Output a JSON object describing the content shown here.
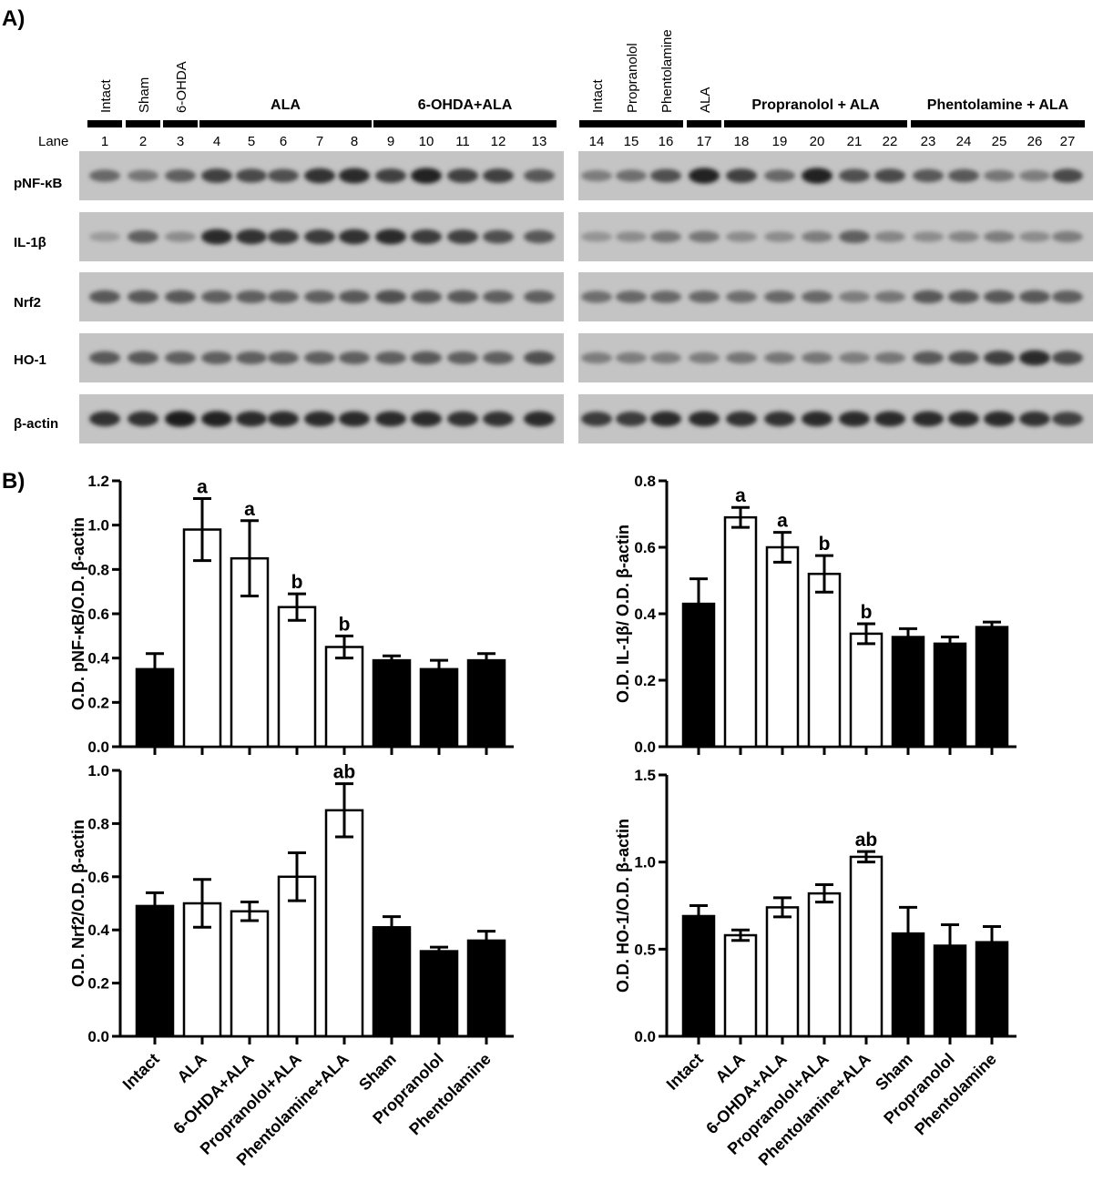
{
  "panel_a": {
    "label": "A)",
    "lane_label": "Lane",
    "left_groups": [
      {
        "name": "Intact",
        "lanes": [
          1
        ]
      },
      {
        "name": "Sham",
        "lanes": [
          2
        ]
      },
      {
        "name": "6-OHDA",
        "lanes": [
          3
        ]
      },
      {
        "name": "ALA",
        "lanes": [
          4,
          5,
          6,
          7,
          8
        ]
      },
      {
        "name": "6-OHDA+ALA",
        "lanes": [
          9,
          10,
          11,
          12,
          13
        ]
      }
    ],
    "right_groups": [
      {
        "name": "Intact",
        "lanes": [
          14
        ]
      },
      {
        "name": "Propranolol",
        "lanes": [
          15
        ]
      },
      {
        "name": "Phentolamine",
        "lanes": [
          16
        ]
      },
      {
        "name": "ALA",
        "lanes": [
          17
        ]
      },
      {
        "name": "Propranolol + ALA",
        "lanes": [
          18,
          19,
          20,
          21,
          22
        ]
      },
      {
        "name": "Phentolamine + ALA",
        "lanes": [
          23,
          24,
          25,
          26,
          27
        ]
      }
    ],
    "blots": [
      {
        "protein": "pNF-κB",
        "left_intensity": [
          0.45,
          0.35,
          0.5,
          0.7,
          0.65,
          0.6,
          0.8,
          0.85,
          0.7,
          0.9,
          0.7,
          0.7,
          0.55
        ],
        "right_intensity": [
          0.3,
          0.4,
          0.6,
          0.9,
          0.7,
          0.45,
          0.9,
          0.6,
          0.65,
          0.55,
          0.55,
          0.35,
          0.3,
          0.65
        ]
      },
      {
        "protein": "IL-1β",
        "left_intensity": [
          0.1,
          0.5,
          0.2,
          0.85,
          0.8,
          0.75,
          0.75,
          0.8,
          0.85,
          0.75,
          0.7,
          0.6,
          0.55
        ],
        "right_intensity": [
          0.15,
          0.2,
          0.35,
          0.35,
          0.2,
          0.2,
          0.3,
          0.5,
          0.25,
          0.2,
          0.25,
          0.3,
          0.2,
          0.3
        ]
      },
      {
        "protein": "Nrf2",
        "left_intensity": [
          0.55,
          0.55,
          0.55,
          0.5,
          0.5,
          0.5,
          0.5,
          0.55,
          0.6,
          0.55,
          0.55,
          0.5,
          0.5
        ],
        "right_intensity": [
          0.4,
          0.45,
          0.45,
          0.45,
          0.4,
          0.45,
          0.45,
          0.3,
          0.35,
          0.55,
          0.55,
          0.55,
          0.55,
          0.5
        ]
      },
      {
        "protein": "HO-1",
        "left_intensity": [
          0.55,
          0.55,
          0.5,
          0.5,
          0.5,
          0.5,
          0.5,
          0.5,
          0.5,
          0.55,
          0.5,
          0.5,
          0.6
        ],
        "right_intensity": [
          0.3,
          0.3,
          0.3,
          0.3,
          0.35,
          0.35,
          0.35,
          0.3,
          0.35,
          0.55,
          0.6,
          0.7,
          0.85,
          0.65
        ]
      },
      {
        "protein": "β-actin",
        "left_intensity": [
          0.8,
          0.8,
          0.95,
          0.9,
          0.85,
          0.85,
          0.85,
          0.85,
          0.85,
          0.85,
          0.8,
          0.8,
          0.85
        ],
        "right_intensity": [
          0.75,
          0.75,
          0.85,
          0.85,
          0.8,
          0.8,
          0.85,
          0.85,
          0.85,
          0.85,
          0.85,
          0.85,
          0.8,
          0.7
        ]
      }
    ]
  },
  "panel_b_label": "B)",
  "chart_data": [
    {
      "type": "bar",
      "ylabel": "O.D. pNF-κB/O.D. β-actin",
      "ylim": [
        0,
        1.2
      ],
      "yticks": [
        "0.0",
        "0.2",
        "0.4",
        "0.6",
        "0.8",
        "1.0",
        "1.2"
      ],
      "categories": [
        "Intact",
        "ALA",
        "6-OHDA+ALA",
        "Propranolol+ALA",
        "Phentolamine+ALA",
        "Sham",
        "Propranolol",
        "Phentolamine"
      ],
      "values": [
        0.35,
        0.98,
        0.85,
        0.63,
        0.45,
        0.39,
        0.35,
        0.39
      ],
      "errors": [
        0.07,
        0.14,
        0.17,
        0.06,
        0.05,
        0.02,
        0.04,
        0.03
      ],
      "fills": [
        "black",
        "white",
        "white",
        "white",
        "white",
        "black",
        "black",
        "black"
      ],
      "annotations": [
        "",
        "a",
        "a",
        "b",
        "b",
        "",
        "",
        ""
      ]
    },
    {
      "type": "bar",
      "ylabel": "O.D. IL-1β/ O.D. β-actin",
      "ylim": [
        0,
        0.8
      ],
      "yticks": [
        "0.0",
        "0.2",
        "0.4",
        "0.6",
        "0.8"
      ],
      "categories": [
        "Intact",
        "ALA",
        "6-OHDA+ALA",
        "Propranolol+ALA",
        "Phentolamine+ALA",
        "Sham",
        "Propranolol",
        "Phentolamine"
      ],
      "values": [
        0.43,
        0.69,
        0.6,
        0.52,
        0.34,
        0.33,
        0.31,
        0.36
      ],
      "errors": [
        0.075,
        0.03,
        0.045,
        0.055,
        0.03,
        0.025,
        0.02,
        0.015
      ],
      "fills": [
        "black",
        "white",
        "white",
        "white",
        "white",
        "black",
        "black",
        "black"
      ],
      "annotations": [
        "",
        "a",
        "a",
        "b",
        "b",
        "",
        "",
        ""
      ]
    },
    {
      "type": "bar",
      "ylabel": "O.D. Nrf2/O.D. β-actin",
      "ylim": [
        0,
        1.0
      ],
      "yticks": [
        "0.0",
        "0.2",
        "0.4",
        "0.6",
        "0.8",
        "1.0"
      ],
      "categories": [
        "Intact",
        "ALA",
        "6-OHDA+ALA",
        "Propranolol+ALA",
        "Phentolamine+ALA",
        "Sham",
        "Propranolol",
        "Phentolamine"
      ],
      "values": [
        0.49,
        0.5,
        0.47,
        0.6,
        0.85,
        0.41,
        0.32,
        0.36
      ],
      "errors": [
        0.05,
        0.09,
        0.035,
        0.09,
        0.1,
        0.04,
        0.015,
        0.035
      ],
      "fills": [
        "black",
        "white",
        "white",
        "white",
        "white",
        "black",
        "black",
        "black"
      ],
      "annotations": [
        "",
        "",
        "",
        "",
        "ab",
        "",
        "",
        ""
      ]
    },
    {
      "type": "bar",
      "ylabel": "O.D. HO-1/O.D. β-actin",
      "ylim": [
        0,
        1.5
      ],
      "yticks": [
        "0.0",
        "0.5",
        "1.0",
        "1.5"
      ],
      "categories": [
        "Intact",
        "ALA",
        "6-OHDA+ALA",
        "Propranolol+ALA",
        "Phentolamine+ALA",
        "Sham",
        "Propranolol",
        "Phentolamine"
      ],
      "values": [
        0.69,
        0.58,
        0.74,
        0.82,
        1.03,
        0.59,
        0.52,
        0.54
      ],
      "errors": [
        0.06,
        0.03,
        0.055,
        0.05,
        0.03,
        0.15,
        0.12,
        0.09
      ],
      "fills": [
        "black",
        "white",
        "white",
        "white",
        "white",
        "black",
        "black",
        "black"
      ],
      "annotations": [
        "",
        "",
        "",
        "",
        "ab",
        "",
        "",
        ""
      ]
    }
  ]
}
